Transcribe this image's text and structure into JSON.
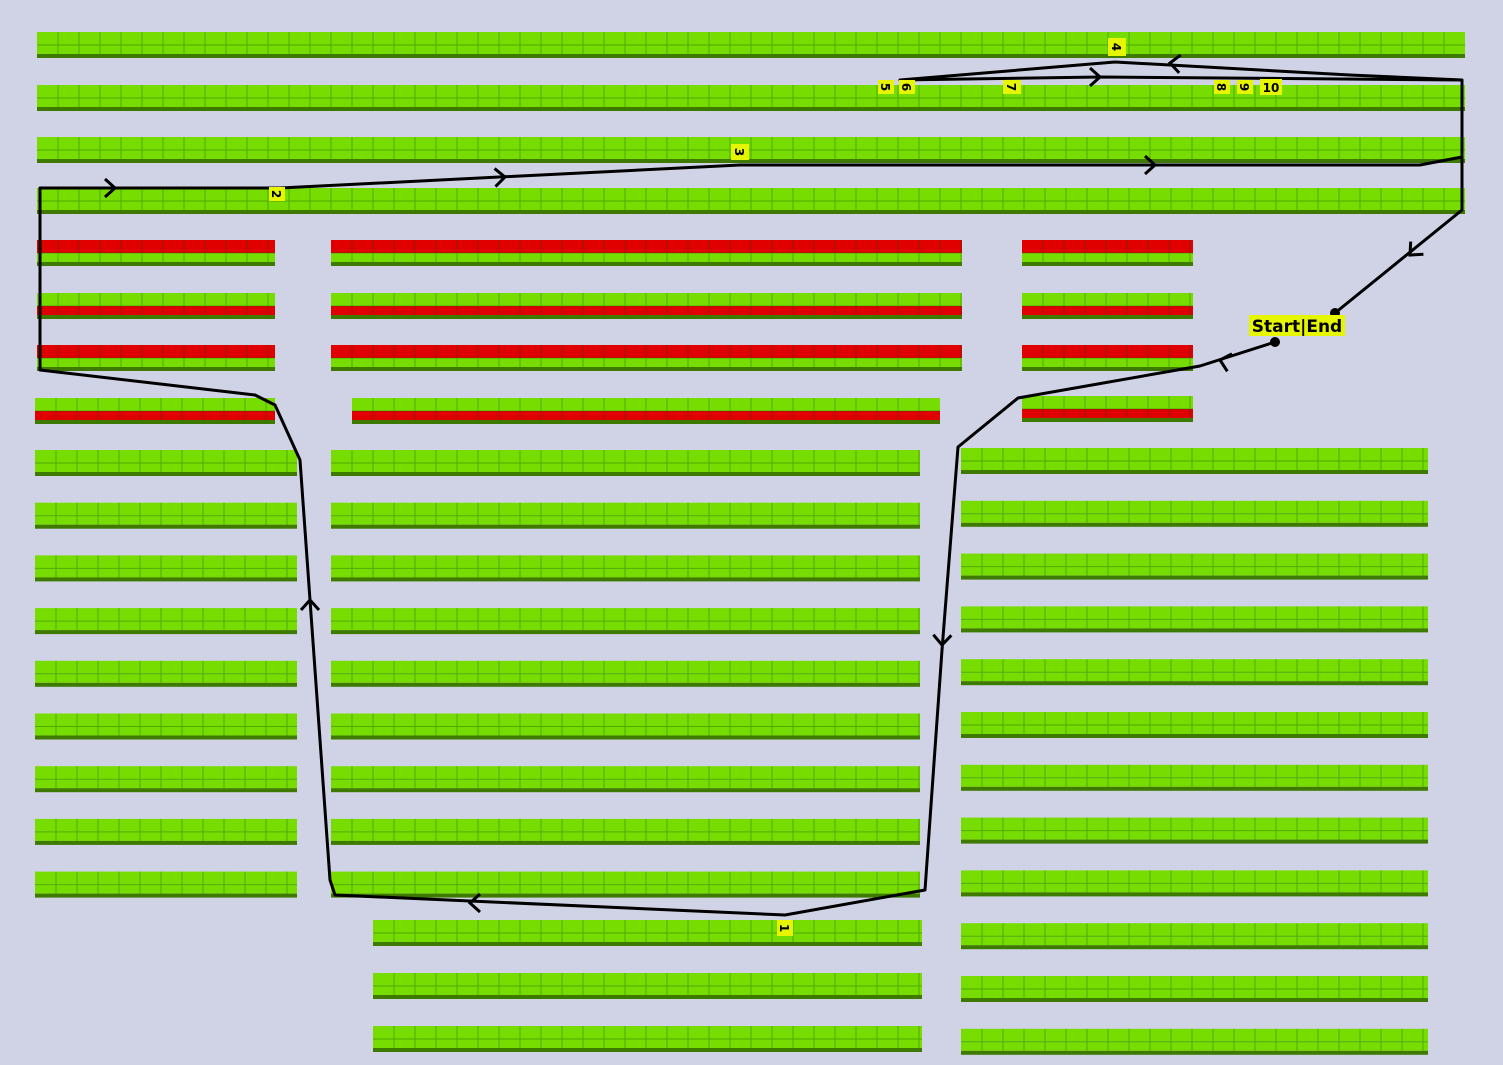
{
  "colors": {
    "background": "#d0d3e6",
    "shelf_free": "#77dd00",
    "shelf_occupied": "#e00000",
    "shelf_side": "#3f7a00",
    "path": "#000000",
    "label_bg": "#e6f500"
  },
  "labels": {
    "start_end": "Start|End",
    "stops": [
      "1",
      "2",
      "3",
      "4",
      "5",
      "6",
      "7",
      "8",
      "9",
      "10"
    ]
  }
}
